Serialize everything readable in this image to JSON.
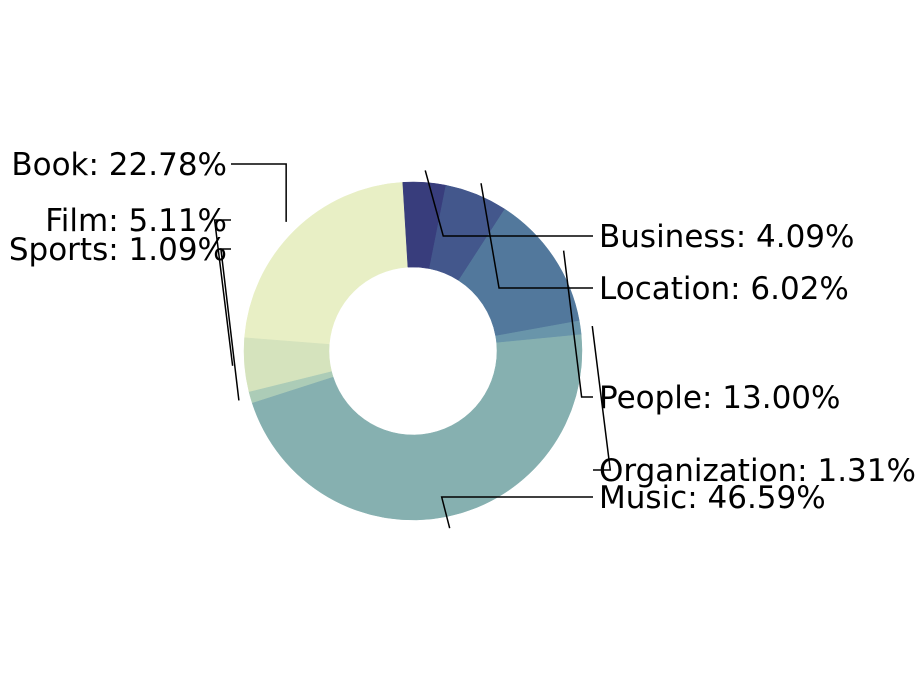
{
  "chart_data": {
    "type": "pie",
    "donut": true,
    "title": "",
    "slices": [
      {
        "label": "Book",
        "value": 22.78,
        "display": "Book: 22.78%",
        "color": "#e8efc5"
      },
      {
        "label": "Business",
        "value": 4.09,
        "display": "Business: 4.09%",
        "color": "#383d7c"
      },
      {
        "label": "Location",
        "value": 6.02,
        "display": "Location: 6.02%",
        "color": "#43578c"
      },
      {
        "label": "People",
        "value": 13.0,
        "display": "People: 13.00%",
        "color": "#52789c"
      },
      {
        "label": "Organization",
        "value": 1.31,
        "display": "Organization: 1.31%",
        "color": "#6995aa"
      },
      {
        "label": "Music",
        "value": 46.59,
        "display": "Music: 46.59%",
        "color": "#86b0b0"
      },
      {
        "label": "Sports",
        "value": 1.09,
        "display": "Sports: 1.09%",
        "color": "#acccb7"
      },
      {
        "label": "Film",
        "value": 5.11,
        "display": "Film: 5.11%",
        "color": "#d5e3bd"
      }
    ]
  }
}
